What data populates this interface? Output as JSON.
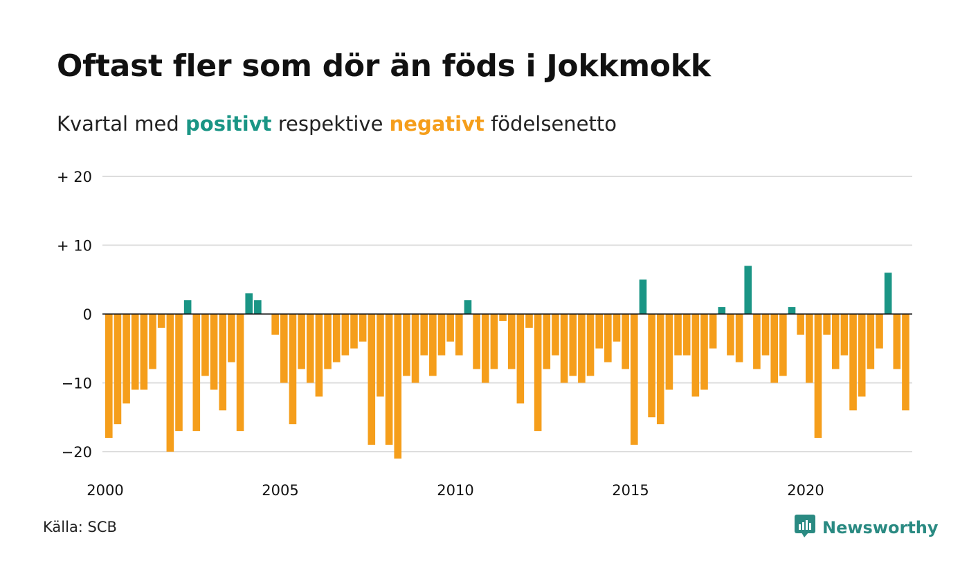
{
  "title": "Oftast fler som dör än föds i Jokkmokk",
  "subtitle": {
    "prefix": "Kvartal med",
    "positive_word": "positivt",
    "middle": "respektive",
    "negative_word": "negativt",
    "suffix": "födelsenetto"
  },
  "source": "Källa: SCB",
  "brand": "Newsworthy",
  "colors": {
    "positive": "#1a9585",
    "negative": "#f59e1b",
    "grid": "#dddddd",
    "axis": "#111111",
    "brand": "#2a8a82"
  },
  "chart_data": {
    "type": "bar",
    "start_year": 2000,
    "frequency": "quarterly",
    "ylim": [
      -23,
      20
    ],
    "y_ticks": [
      {
        "value": 20,
        "label": "+ 20"
      },
      {
        "value": 10,
        "label": "+ 10"
      },
      {
        "value": 0,
        "label": "0"
      },
      {
        "value": -10,
        "label": "−10"
      },
      {
        "value": -20,
        "label": "−20"
      }
    ],
    "x_ticks": [
      {
        "year": 2000,
        "label": "2000"
      },
      {
        "year": 2005,
        "label": "2005"
      },
      {
        "year": 2010,
        "label": "2010"
      },
      {
        "year": 2015,
        "label": "2015"
      },
      {
        "year": 2020,
        "label": "2020"
      }
    ],
    "values": [
      -18,
      -16,
      -13,
      -11,
      -11,
      -8,
      -2,
      -20,
      -17,
      2,
      -17,
      -9,
      -11,
      -14,
      -7,
      -17,
      3,
      2,
      0,
      -3,
      -10,
      -16,
      -8,
      -10,
      -12,
      -8,
      -7,
      -6,
      -5,
      -4,
      -19,
      -12,
      -19,
      -21,
      -9,
      -10,
      -6,
      -9,
      -6,
      -4,
      -6,
      2,
      -8,
      -10,
      -8,
      -1,
      -8,
      -13,
      -2,
      -17,
      -8,
      -6,
      -10,
      -9,
      -10,
      -9,
      -5,
      -7,
      -4,
      -8,
      -19,
      5,
      -15,
      -16,
      -11,
      -6,
      -6,
      -12,
      -11,
      -5,
      1,
      -6,
      -7,
      7,
      -8,
      -6,
      -10,
      -9,
      1,
      -3,
      -10,
      -18,
      -3,
      -8,
      -6,
      -14,
      -12,
      -8,
      -5,
      6,
      -8,
      -14
    ]
  }
}
